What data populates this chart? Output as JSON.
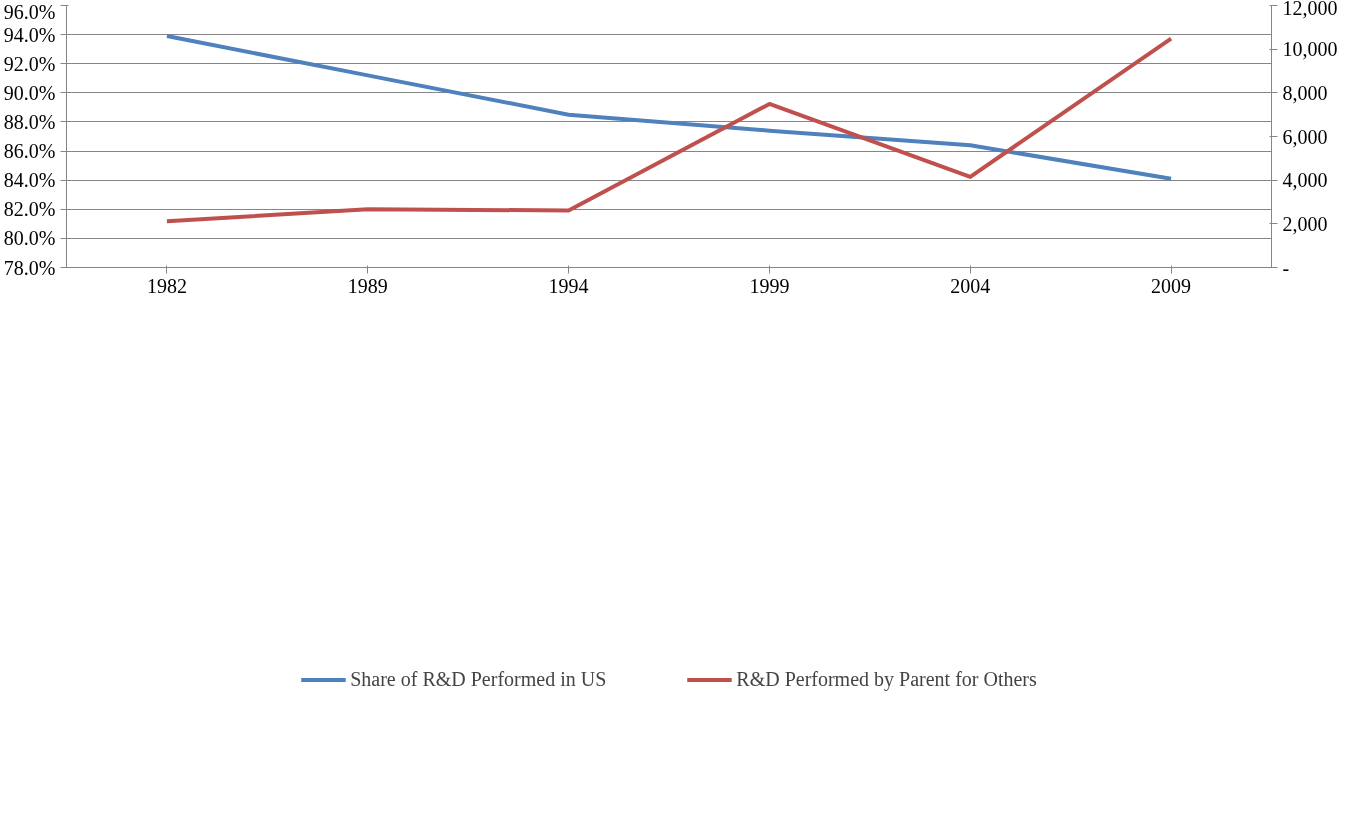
{
  "chart_data": {
    "type": "line",
    "categories": [
      "1982",
      "1989",
      "1994",
      "1999",
      "2004",
      "2009"
    ],
    "series": [
      {
        "name": "Share of R&D Performed in US",
        "color": "#4f81bd",
        "values": [
          93.9,
          91.2,
          88.5,
          87.4,
          86.4,
          84.1
        ]
      },
      {
        "name": "R&D Performed by Parent for Others",
        "color": "#c0504d",
        "values": [
          2120,
          2670,
          2610,
          7490,
          4150,
          10480
        ],
        "axis": "y2"
      }
    ],
    "ylim": [
      78,
      96
    ],
    "yticks": [
      {
        "value": 78,
        "label": "78.0%"
      },
      {
        "value": 80,
        "label": "80.0%"
      },
      {
        "value": 82,
        "label": "82.0%"
      },
      {
        "value": 84,
        "label": "84.0%"
      },
      {
        "value": 86,
        "label": "86.0%"
      },
      {
        "value": 88,
        "label": "88.0%"
      },
      {
        "value": 90,
        "label": "90.0%"
      },
      {
        "value": 92,
        "label": "92.0%"
      },
      {
        "value": 94,
        "label": "94.0%"
      },
      {
        "value": 96,
        "label": "96.0%"
      }
    ],
    "y2lim": [
      0,
      12000
    ],
    "y2ticks": [
      {
        "value": 0,
        "label": "-"
      },
      {
        "value": 2000,
        "label": "2,000"
      },
      {
        "value": 4000,
        "label": "4,000"
      },
      {
        "value": 6000,
        "label": "6,000"
      },
      {
        "value": 8000,
        "label": "8,000"
      },
      {
        "value": 10000,
        "label": "10,000"
      },
      {
        "value": 12000,
        "label": "12,000"
      }
    ],
    "grid": "y",
    "legend": "bottom",
    "marker": "none",
    "line_style": "solid"
  }
}
